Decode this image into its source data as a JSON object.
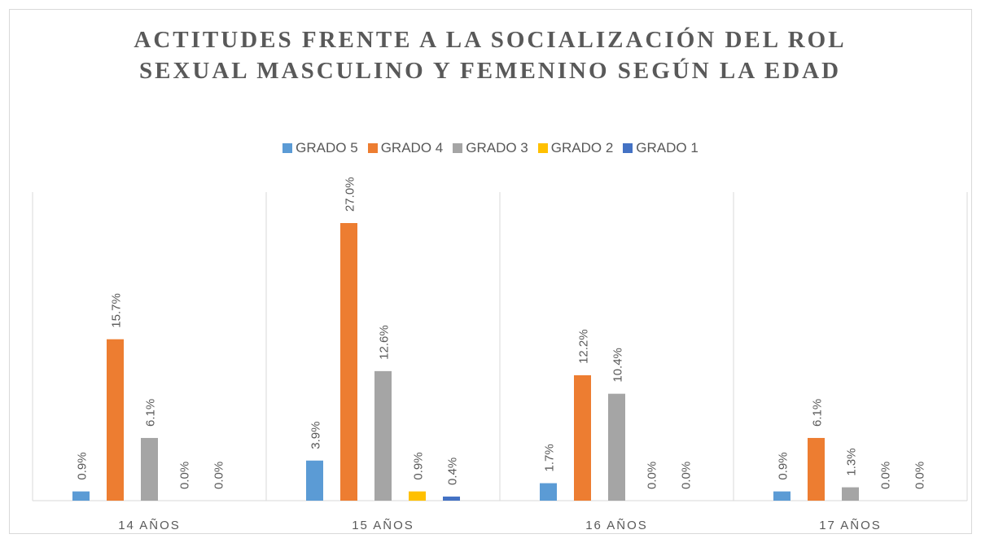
{
  "chart_data": {
    "type": "bar",
    "title": "ACTITUDES FRENTE A LA SOCIALIZACIÓN DEL ROL SEXUAL MASCULINO Y FEMENINO SEGÚN LA EDAD",
    "categories": [
      "14 AÑOS",
      "15 AÑOS",
      "16 AÑOS",
      "17 AÑOS"
    ],
    "series": [
      {
        "name": "GRADO 5",
        "color": "#5b9bd5",
        "values": [
          0.9,
          3.9,
          1.7,
          0.9
        ],
        "value_labels": [
          "0.9%",
          "3.9%",
          "1.7%",
          "0.9%"
        ]
      },
      {
        "name": "GRADO 4",
        "color": "#ed7d31",
        "values": [
          15.7,
          27.0,
          12.2,
          6.1
        ],
        "value_labels": [
          "15.7%",
          "27.0%",
          "12.2%",
          "6.1%"
        ]
      },
      {
        "name": "GRADO 3",
        "color": "#a5a5a5",
        "values": [
          6.1,
          12.6,
          10.4,
          1.3
        ],
        "value_labels": [
          "6.1%",
          "12.6%",
          "10.4%",
          "1.3%"
        ]
      },
      {
        "name": "GRADO 2",
        "color": "#ffc000",
        "values": [
          0.0,
          0.9,
          0.0,
          0.0
        ],
        "value_labels": [
          "0.0%",
          "0.9%",
          "0.0%",
          "0.0%"
        ]
      },
      {
        "name": "GRADO 1",
        "color": "#4472c4",
        "values": [
          0.0,
          0.4,
          0.0,
          0.0
        ],
        "value_labels": [
          "0.0%",
          "0.4%",
          "0.0%",
          "0.0%"
        ]
      }
    ],
    "legend": "top"
  }
}
